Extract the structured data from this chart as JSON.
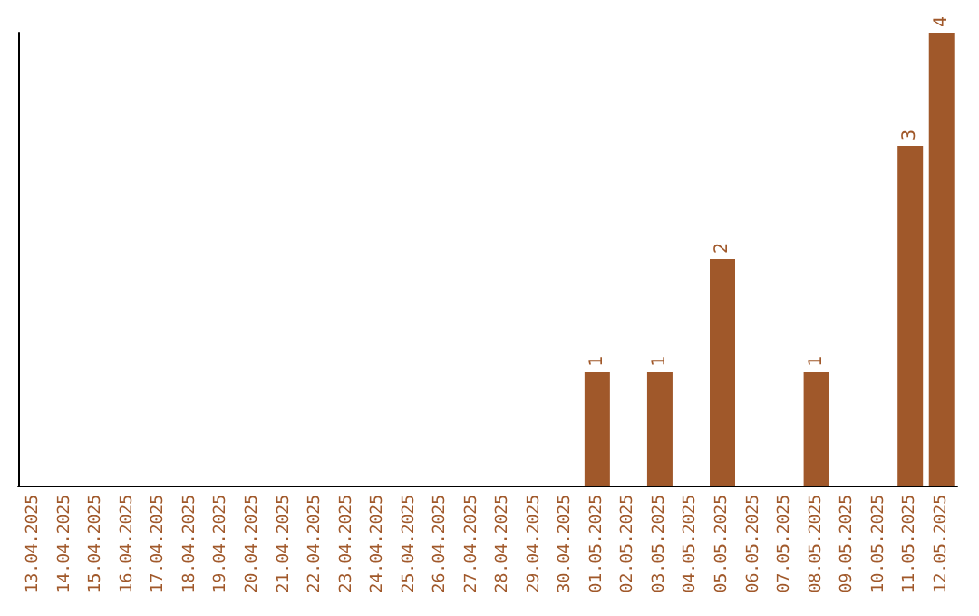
{
  "chart_data": {
    "type": "bar",
    "categories": [
      "13.04.2025",
      "14.04.2025",
      "15.04.2025",
      "16.04.2025",
      "17.04.2025",
      "18.04.2025",
      "19.04.2025",
      "20.04.2025",
      "21.04.2025",
      "22.04.2025",
      "23.04.2025",
      "24.04.2025",
      "25.04.2025",
      "26.04.2025",
      "27.04.2025",
      "28.04.2025",
      "29.04.2025",
      "30.04.2025",
      "01.05.2025",
      "02.05.2025",
      "03.05.2025",
      "04.05.2025",
      "05.05.2025",
      "06.05.2025",
      "07.05.2025",
      "08.05.2025",
      "09.05.2025",
      "10.05.2025",
      "11.05.2025",
      "12.05.2025"
    ],
    "values": [
      null,
      null,
      null,
      null,
      null,
      null,
      null,
      null,
      null,
      null,
      null,
      null,
      null,
      null,
      null,
      null,
      null,
      null,
      1,
      null,
      1,
      null,
      2,
      null,
      null,
      1,
      null,
      null,
      3,
      4
    ],
    "value_labels": [
      null,
      null,
      null,
      null,
      null,
      null,
      null,
      null,
      null,
      null,
      null,
      null,
      null,
      null,
      null,
      null,
      null,
      null,
      "1",
      null,
      "1",
      null,
      "2",
      null,
      null,
      "1",
      null,
      null,
      "3",
      "4"
    ],
    "color": "#a0582a",
    "grid": false,
    "tick_labels": "x"
  }
}
